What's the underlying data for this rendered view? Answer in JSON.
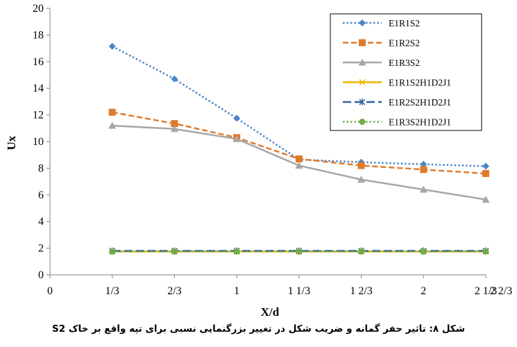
{
  "chart_data": {
    "type": "line",
    "title": "",
    "xlabel": "X/d",
    "ylabel": "Ux",
    "ylim": [
      0,
      20
    ],
    "ytick_step": 2,
    "xlim": [
      0,
      7
    ],
    "x_tick_labels": [
      "0",
      "1/3",
      "2/3",
      "1",
      "1 1/3",
      "1 2/3",
      "2",
      "2 1/3",
      "2 2/3"
    ],
    "x": [
      1,
      2,
      3,
      4,
      5,
      6,
      7
    ],
    "grid": false,
    "legend_position": "top-right",
    "series": [
      {
        "name": "E1R1S2",
        "values": [
          17.15,
          14.7,
          11.75,
          8.65,
          8.45,
          8.3,
          8.15
        ],
        "color": "#4a86c5",
        "dash": "dotted",
        "marker": "diamond"
      },
      {
        "name": "E1R2S2",
        "values": [
          12.2,
          11.35,
          10.3,
          8.7,
          8.2,
          7.9,
          7.6
        ],
        "color": "#e07a2b",
        "dash": "dashed",
        "marker": "square"
      },
      {
        "name": "E1R3S2",
        "values": [
          11.2,
          10.95,
          10.2,
          8.2,
          7.15,
          6.4,
          5.65
        ],
        "color": "#a6a6a6",
        "dash": "solid",
        "marker": "triangle"
      },
      {
        "name": "E1R1S2H1D2J1",
        "values": [
          1.75,
          1.75,
          1.75,
          1.75,
          1.75,
          1.75,
          1.75
        ],
        "color": "#f0b400",
        "dash": "solid",
        "marker": "x"
      },
      {
        "name": "E1R2S2H1D2J1",
        "values": [
          1.8,
          1.8,
          1.8,
          1.8,
          1.8,
          1.8,
          1.8
        ],
        "color": "#2e5f9e",
        "dash": "longdash",
        "marker": "star"
      },
      {
        "name": "E1R3S2H1D2J1",
        "values": [
          1.75,
          1.75,
          1.75,
          1.75,
          1.75,
          1.75,
          1.75
        ],
        "color": "#70ad47",
        "dash": "dotted",
        "marker": "circle"
      }
    ]
  },
  "caption": "شکل ۸: تاثیر حفر گمانه و ضریب شکل در تغییر بزرگنمایی نسبی برای تپه واقع بر خاک S2"
}
